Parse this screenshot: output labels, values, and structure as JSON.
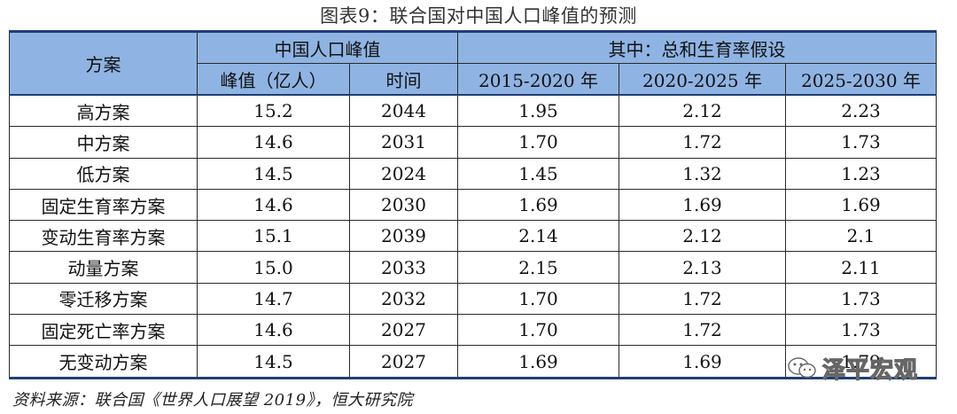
{
  "title": "图表9：联合国对中国人口峰值的预测",
  "table": {
    "header_scheme": "方案",
    "header_group1": "中国人口峰值",
    "header_group2": "其中：总和生育率假设",
    "col_peak": "峰值（亿人）",
    "col_time": "时间",
    "col_p1": "2015-2020 年",
    "col_p2": "2020-2025 年",
    "col_p3": "2025-2030 年",
    "rows": [
      {
        "name": "高方案",
        "peak": "15.2",
        "year": "2044",
        "p1": "1.95",
        "p2": "2.12",
        "p3": "2.23"
      },
      {
        "name": "中方案",
        "peak": "14.6",
        "year": "2031",
        "p1": "1.70",
        "p2": "1.72",
        "p3": "1.73"
      },
      {
        "name": "低方案",
        "peak": "14.5",
        "year": "2024",
        "p1": "1.45",
        "p2": "1.32",
        "p3": "1.23"
      },
      {
        "name": "固定生育率方案",
        "peak": "14.6",
        "year": "2030",
        "p1": "1.69",
        "p2": "1.69",
        "p3": "1.69"
      },
      {
        "name": "变动生育率方案",
        "peak": "15.1",
        "year": "2039",
        "p1": "2.14",
        "p2": "2.12",
        "p3": "2.1"
      },
      {
        "name": "动量方案",
        "peak": "15.0",
        "year": "2033",
        "p1": "2.15",
        "p2": "2.13",
        "p3": "2.11"
      },
      {
        "name": "零迁移方案",
        "peak": "14.7",
        "year": "2032",
        "p1": "1.70",
        "p2": "1.72",
        "p3": "1.73"
      },
      {
        "name": "固定死亡率方案",
        "peak": "14.6",
        "year": "2027",
        "p1": "1.70",
        "p2": "1.72",
        "p3": "1.73"
      },
      {
        "name": "无变动方案",
        "peak": "14.5",
        "year": "2027",
        "p1": "1.69",
        "p2": "1.69",
        "p3": "1.79"
      }
    ]
  },
  "source": "资料来源：联合国《世界人口展望 2019》，恒大研究院",
  "watermark": {
    "text": "泽平宏观",
    "icon": "wechat-icon"
  },
  "colors": {
    "header_bg": "#8fb4e3",
    "rule": "#1f3f73"
  }
}
